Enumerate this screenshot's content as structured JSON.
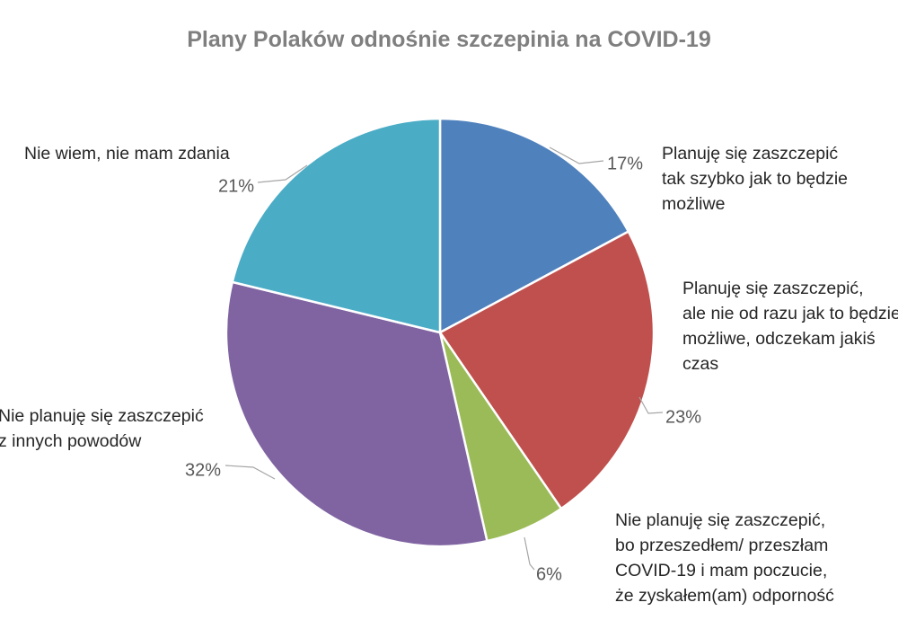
{
  "chart_data": {
    "type": "pie",
    "title": "Plany Polaków odnośnie szczepinia na COVID-19",
    "slices": [
      {
        "label_lines": [
          "Planuję się zaszczepić",
          "tak szybko jak to będzie",
          "możliwe"
        ],
        "value": 17,
        "value_label": "17%",
        "color": "#4f81bd"
      },
      {
        "label_lines": [
          "Planuję się zaszczepić,",
          "ale nie od razu jak to będzie",
          "możliwe, odczekam jakiś",
          "czas"
        ],
        "value": 23,
        "value_label": "23%",
        "color": "#c0504d"
      },
      {
        "label_lines": [
          "Nie planuję się zaszczepić,",
          "bo przeszedłem/ przeszłam",
          "COVID-19 i mam poczucie,",
          "że zyskałem(am) odporność"
        ],
        "value": 6,
        "value_label": "6%",
        "color": "#9bbb59"
      },
      {
        "label_lines": [
          "Nie planuję się zaszczepić",
          "z innych powodów"
        ],
        "value": 32,
        "value_label": "32%",
        "color": "#8064a2"
      },
      {
        "label_lines": [
          "Nie wiem, nie mam zdania"
        ],
        "value": 21,
        "value_label": "21%",
        "color": "#4bacc6"
      }
    ],
    "legend": "none",
    "start_angle_deg": 0,
    "direction": "clockwise"
  }
}
